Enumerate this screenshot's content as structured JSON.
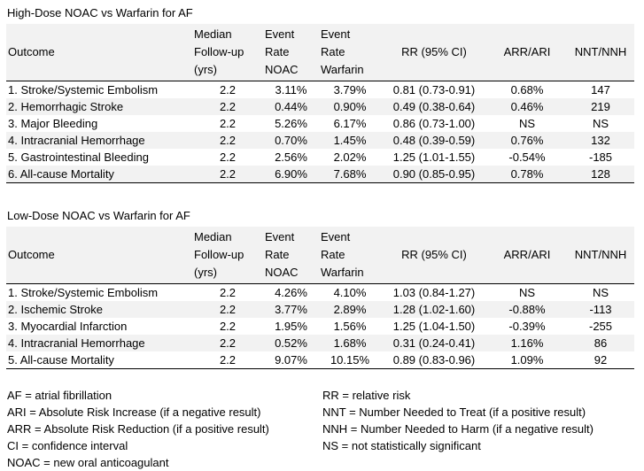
{
  "style": {
    "background": "#ffffff",
    "text": "#000000",
    "band": "#f2f2f2",
    "border": "#000000"
  },
  "tables": [
    {
      "title": "High-Dose NOAC vs Warfarin for AF",
      "headers": [
        "Outcome",
        "Median\nFollow-up\n(yrs)",
        "Event\nRate\nNOAC",
        "Event\nRate\nWarfarin",
        "RR (95% CI)",
        "ARR/ARI",
        "NNT/NNH"
      ],
      "rows": [
        [
          "1. Stroke/Systemic Embolism",
          "2.2",
          "3.11%",
          "3.79%",
          "0.81 (0.73-0.91)",
          "0.68%",
          "147"
        ],
        [
          "2. Hemorrhagic Stroke",
          "2.2",
          "0.44%",
          "0.90%",
          "0.49 (0.38-0.64)",
          "0.46%",
          "219"
        ],
        [
          "3. Major Bleeding",
          "2.2",
          "5.26%",
          "6.17%",
          "0.86 (0.73-1.00)",
          "NS",
          "NS"
        ],
        [
          "4. Intracranial Hemorrhage",
          "2.2",
          "0.70%",
          "1.45%",
          "0.48 (0.39-0.59)",
          "0.76%",
          "132"
        ],
        [
          "5. Gastrointestinal Bleeding",
          "2.2",
          "2.56%",
          "2.02%",
          "1.25 (1.01-1.55)",
          "-0.54%",
          "-185"
        ],
        [
          "6. All-cause Mortality",
          "2.2",
          "6.90%",
          "7.68%",
          "0.90 (0.85-0.95)",
          "0.78%",
          "128"
        ]
      ]
    },
    {
      "title": "Low-Dose NOAC vs Warfarin for AF",
      "headers": [
        "Outcome",
        "Median\nFollow-up\n(yrs)",
        "Event\nRate\nNOAC",
        "Event\nRate\nWarfarin",
        "RR (95% CI)",
        "ARR/ARI",
        "NNT/NNH"
      ],
      "rows": [
        [
          "1. Stroke/Systemic Embolism",
          "2.2",
          "4.26%",
          "4.10%",
          "1.03 (0.84-1.27)",
          "NS",
          "NS"
        ],
        [
          "2. Ischemic Stroke",
          "2.2",
          "3.77%",
          "2.89%",
          "1.28 (1.02-1.60)",
          "-0.88%",
          "-113"
        ],
        [
          "3. Myocardial Infarction",
          "2.2",
          "1.95%",
          "1.56%",
          "1.25 (1.04-1.50)",
          "-0.39%",
          "-255"
        ],
        [
          "4. Intracranial Hemorrhage",
          "2.2",
          "0.52%",
          "1.68%",
          "0.31 (0.24-0.41)",
          "1.16%",
          "86"
        ],
        [
          "5. All-cause Mortality",
          "2.2",
          "9.07%",
          "10.15%",
          "0.89 (0.83-0.96)",
          "1.09%",
          "92"
        ]
      ]
    }
  ],
  "footnotes": {
    "left": [
      "AF = atrial fibrillation",
      "ARI = Absolute Risk Increase (if a negative result)",
      "ARR = Absolute Risk Reduction (if a positive result)",
      "CI = confidence interval",
      "NOAC = new oral anticoagulant"
    ],
    "right": [
      "RR = relative risk",
      "NNT = Number Needed to Treat (if a positive result)",
      "NNH = Number Needed to Harm (if a negative result)",
      "NS = not statistically significant"
    ]
  }
}
